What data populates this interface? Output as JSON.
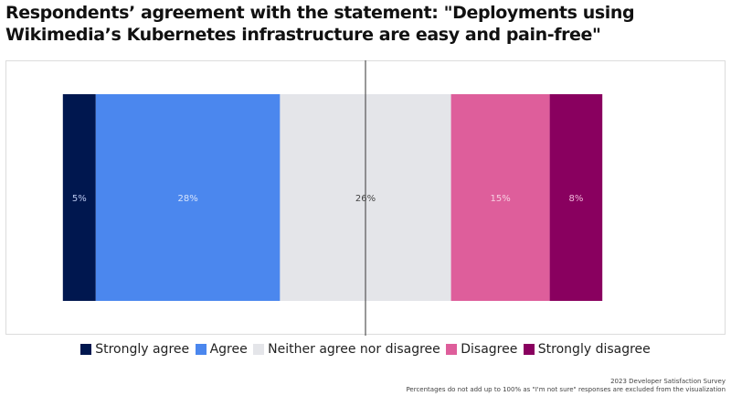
{
  "chart_data": {
    "type": "bar",
    "orientation": "horizontal-stacked-diverging",
    "title": "Respondents’ agreement with the statement: \"Deployments using Wikimedia’s Kubernetes infrastructure are easy and pain-free\"",
    "xlabel": "",
    "ylabel": "",
    "grid": false,
    "legend_position": "bottom",
    "categories": [
      "Deployments using Wikimedia's Kubernetes infrastructure are easy and pain-free"
    ],
    "series": [
      {
        "name": "Strongly agree",
        "values": [
          5
        ],
        "label": "5%",
        "color": "#00174f",
        "label_color": "#b9c8ef"
      },
      {
        "name": "Agree",
        "values": [
          28
        ],
        "label": "28%",
        "color": "#4b87ee",
        "label_color": "#d6e3fb"
      },
      {
        "name": "Neither agree nor disagree",
        "values": [
          26
        ],
        "label": "26%",
        "color": "#e4e5e9",
        "label_color": "#444444"
      },
      {
        "name": "Disagree",
        "values": [
          15
        ],
        "label": "15%",
        "color": "#de5e9b",
        "label_color": "#f7cfe1"
      },
      {
        "name": "Strongly disagree",
        "values": [
          8
        ],
        "label": "8%",
        "color": "#89005f",
        "label_color": "#f1b8db"
      }
    ],
    "center_line": "midpoint of neutral segment",
    "xlim_percent": [
      -42,
      42
    ]
  },
  "footnote": {
    "source": "2023 Developer Satisfaction Survey",
    "note": "Percentages do not add up to 100% as \"I'm not sure\" responses are excluded from the visualization"
  }
}
